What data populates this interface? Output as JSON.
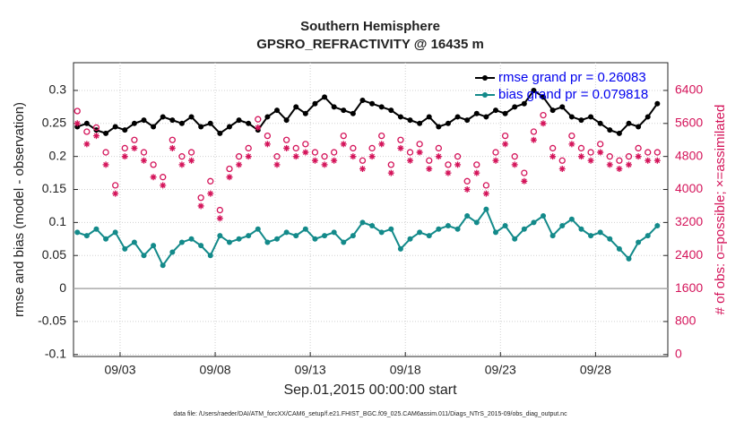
{
  "chart_data": {
    "type": "line",
    "title": "Southern Hemisphere",
    "subtitle": "GPSRO_REFRACTIVITY @ 16435 m",
    "x_label": "Sep.01,2015 00:00:00 start",
    "y_label": "rmse and bias (model - observation)",
    "y2_label": "# of obs: o=possible; ×=assimilated",
    "footnote": "data file: /Users/raeder/DAI/ATM_forcXX/CAM6_setup/f.e21.FHIST_BGC.f09_025.CAM6assim.011/Diags_NTrS_2015-09/obs_diag_output.nc",
    "grid": true,
    "legend": "upper right",
    "xlim": [
      0.55,
      31.8
    ],
    "xticks": [
      {
        "value": 3,
        "label": "09/03"
      },
      {
        "value": 8,
        "label": "09/08"
      },
      {
        "value": 13,
        "label": "09/13"
      },
      {
        "value": 18,
        "label": "09/18"
      },
      {
        "value": 23,
        "label": "09/23"
      },
      {
        "value": 28,
        "label": "09/28"
      }
    ],
    "ylim": [
      -0.103,
      0.342
    ],
    "yticks": [
      -0.1,
      -0.05,
      0,
      0.05,
      0.1,
      0.15,
      0.2,
      0.25,
      0.3
    ],
    "y2lim": [
      -48,
      7072
    ],
    "y2ticks": [
      0,
      800,
      1600,
      2400,
      3200,
      4000,
      4800,
      5600,
      6400
    ],
    "zero_line": 0,
    "x": [
      0.75,
      1.25,
      1.75,
      2.25,
      2.75,
      3.25,
      3.75,
      4.25,
      4.75,
      5.25,
      5.75,
      6.25,
      6.75,
      7.25,
      7.75,
      8.25,
      8.75,
      9.25,
      9.75,
      10.25,
      10.75,
      11.25,
      11.75,
      12.25,
      12.75,
      13.25,
      13.75,
      14.25,
      14.75,
      15.25,
      15.75,
      16.25,
      16.75,
      17.25,
      17.75,
      18.25,
      18.75,
      19.25,
      19.75,
      20.25,
      20.75,
      21.25,
      21.75,
      22.25,
      22.75,
      23.25,
      23.75,
      24.25,
      24.75,
      25.25,
      25.75,
      26.25,
      26.75,
      27.25,
      27.75,
      28.25,
      28.75,
      29.25,
      29.75,
      30.25,
      30.75,
      31.25
    ],
    "series": [
      {
        "name": "rmse grand pr = 0.26083",
        "color": "#000000",
        "marker": "dot",
        "line": true,
        "values": [
          0.245,
          0.25,
          0.24,
          0.235,
          0.245,
          0.24,
          0.25,
          0.255,
          0.245,
          0.26,
          0.255,
          0.25,
          0.26,
          0.245,
          0.25,
          0.235,
          0.245,
          0.255,
          0.25,
          0.24,
          0.26,
          0.27,
          0.255,
          0.275,
          0.265,
          0.28,
          0.29,
          0.275,
          0.27,
          0.265,
          0.285,
          0.28,
          0.275,
          0.27,
          0.26,
          0.255,
          0.25,
          0.26,
          0.245,
          0.25,
          0.26,
          0.255,
          0.265,
          0.26,
          0.27,
          0.265,
          0.275,
          0.28,
          0.3,
          0.29,
          0.27,
          0.275,
          0.26,
          0.255,
          0.26,
          0.25,
          0.24,
          0.235,
          0.25,
          0.245,
          0.26,
          0.28
        ]
      },
      {
        "name": "bias grand pr = 0.079818",
        "color": "#138a8a",
        "marker": "dot",
        "line": true,
        "values": [
          0.085,
          0.08,
          0.09,
          0.075,
          0.085,
          0.06,
          0.07,
          0.05,
          0.065,
          0.035,
          0.055,
          0.07,
          0.075,
          0.065,
          0.05,
          0.08,
          0.07,
          0.075,
          0.08,
          0.09,
          0.07,
          0.075,
          0.085,
          0.08,
          0.09,
          0.075,
          0.08,
          0.085,
          0.07,
          0.08,
          0.1,
          0.095,
          0.085,
          0.09,
          0.06,
          0.075,
          0.085,
          0.08,
          0.09,
          0.095,
          0.09,
          0.11,
          0.1,
          0.12,
          0.085,
          0.095,
          0.075,
          0.09,
          0.1,
          0.11,
          0.08,
          0.095,
          0.105,
          0.09,
          0.08,
          0.085,
          0.075,
          0.06,
          0.045,
          0.07,
          0.08,
          0.095
        ]
      },
      {
        "color": "#d4145a",
        "marker": "circle",
        "line": false,
        "axis": "y2",
        "values": [
          5900,
          5400,
          5500,
          4900,
          4100,
          5000,
          5200,
          4900,
          4600,
          4300,
          5200,
          4800,
          4900,
          3800,
          4200,
          3500,
          4500,
          4800,
          5000,
          5700,
          5300,
          4800,
          5200,
          5000,
          5100,
          4900,
          4800,
          4900,
          5300,
          5000,
          4700,
          5000,
          5300,
          4600,
          5200,
          4900,
          5100,
          4700,
          5000,
          4600,
          4800,
          4200,
          4600,
          4100,
          4900,
          5300,
          4800,
          4400,
          5400,
          5800,
          5000,
          4700,
          5300,
          5000,
          4900,
          5100,
          4800,
          4700,
          4800,
          5000,
          4900,
          4900
        ]
      },
      {
        "color": "#d4145a",
        "marker": "asterisk",
        "line": false,
        "axis": "y2",
        "values": [
          5600,
          5100,
          5300,
          4600,
          3900,
          4800,
          5000,
          4700,
          4300,
          4100,
          5000,
          4600,
          4700,
          3600,
          3900,
          3300,
          4300,
          4600,
          4800,
          5500,
          5100,
          4600,
          5000,
          4800,
          4900,
          4700,
          4600,
          4700,
          5100,
          4800,
          4500,
          4800,
          5100,
          4400,
          5000,
          4700,
          4900,
          4500,
          4800,
          4400,
          4600,
          4000,
          4400,
          3900,
          4700,
          5100,
          4600,
          4200,
          5200,
          5600,
          4800,
          4500,
          5100,
          4800,
          4700,
          4900,
          4600,
          4500,
          4600,
          4800,
          4700,
          4700
        ]
      }
    ],
    "y2_color": "#d4145a",
    "legend_text_color": "#0000ee"
  }
}
